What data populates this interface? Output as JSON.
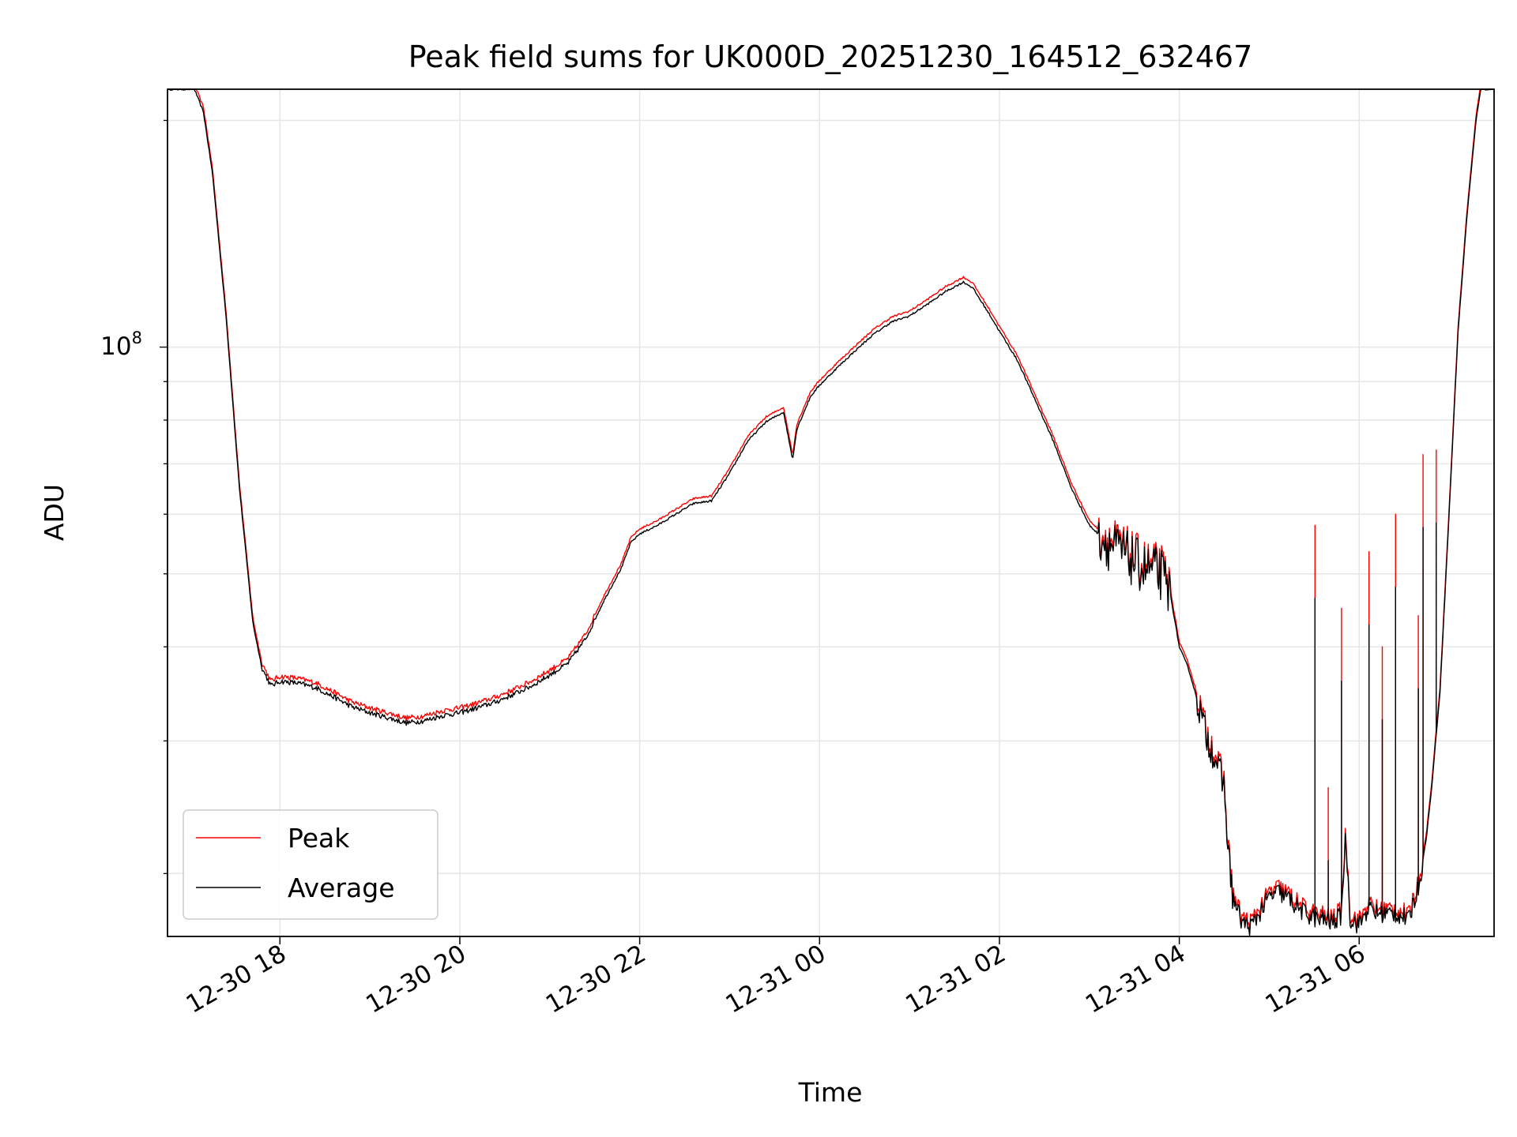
{
  "chart_data": {
    "type": "line",
    "title": "Peak field sums for UK000D_20251230_164512_632467",
    "xlabel": "Time",
    "ylabel": "ADU",
    "yscale": "log",
    "y_major_tick_label": {
      "base": "10",
      "exponent": "8",
      "value": 100000000
    },
    "y_minor_ticks": [
      20000000,
      30000000,
      40000000,
      50000000,
      60000000,
      70000000,
      80000000,
      90000000,
      200000000
    ],
    "xlim_hours": [
      16.75,
      31.5
    ],
    "ylim": [
      16500000,
      220000000
    ],
    "x_tick_labels": [
      "12-30 18",
      "12-30 20",
      "12-30 22",
      "12-31 00",
      "12-31 02",
      "12-31 04",
      "12-31 06"
    ],
    "x_tick_hours": [
      18,
      20,
      22,
      24,
      26,
      28,
      30
    ],
    "grid": true,
    "legend": {
      "position": "lower-left",
      "entries": [
        "Peak",
        "Average"
      ]
    },
    "series": [
      {
        "name": "Average",
        "color": "#000000",
        "points": [
          [
            16.75,
            220000000
          ],
          [
            17.05,
            220000000
          ],
          [
            17.15,
            205000000
          ],
          [
            17.25,
            170000000
          ],
          [
            17.4,
            110000000
          ],
          [
            17.55,
            65000000
          ],
          [
            17.7,
            43000000
          ],
          [
            17.8,
            37500000
          ],
          [
            17.9,
            35500000
          ],
          [
            18.0,
            36000000
          ],
          [
            18.2,
            35800000
          ],
          [
            18.4,
            35300000
          ],
          [
            18.6,
            34300000
          ],
          [
            18.8,
            33300000
          ],
          [
            19.0,
            32700000
          ],
          [
            19.2,
            32200000
          ],
          [
            19.4,
            31700000
          ],
          [
            19.6,
            31900000
          ],
          [
            19.8,
            32400000
          ],
          [
            20.0,
            32700000
          ],
          [
            20.2,
            33200000
          ],
          [
            20.4,
            33800000
          ],
          [
            20.6,
            34600000
          ],
          [
            20.8,
            35500000
          ],
          [
            21.0,
            36700000
          ],
          [
            21.2,
            38000000
          ],
          [
            21.4,
            41000000
          ],
          [
            21.6,
            46000000
          ],
          [
            21.8,
            51000000
          ],
          [
            21.9,
            55000000
          ],
          [
            22.0,
            56500000
          ],
          [
            22.2,
            58000000
          ],
          [
            22.4,
            60000000
          ],
          [
            22.6,
            62000000
          ],
          [
            22.8,
            62500000
          ],
          [
            23.0,
            68000000
          ],
          [
            23.2,
            75000000
          ],
          [
            23.4,
            79500000
          ],
          [
            23.6,
            82000000
          ],
          [
            23.7,
            71000000
          ],
          [
            23.75,
            78000000
          ],
          [
            23.9,
            86000000
          ],
          [
            24.0,
            89000000
          ],
          [
            24.2,
            94000000
          ],
          [
            24.4,
            99000000
          ],
          [
            24.6,
            104000000
          ],
          [
            24.8,
            108000000
          ],
          [
            25.0,
            110000000
          ],
          [
            25.2,
            114000000
          ],
          [
            25.4,
            118500000
          ],
          [
            25.6,
            122000000
          ],
          [
            25.7,
            120000000
          ],
          [
            25.9,
            110000000
          ],
          [
            26.0,
            105000000
          ],
          [
            26.2,
            96000000
          ],
          [
            26.4,
            85000000
          ],
          [
            26.6,
            75000000
          ],
          [
            26.8,
            65000000
          ],
          [
            27.0,
            58000000
          ],
          [
            27.2,
            55000000
          ],
          [
            27.4,
            53000000
          ],
          [
            27.6,
            51000000
          ],
          [
            27.8,
            50000000
          ],
          [
            27.9,
            47000000
          ],
          [
            28.0,
            40000000
          ],
          [
            28.1,
            37500000
          ],
          [
            28.2,
            34000000
          ],
          [
            28.3,
            30500000
          ],
          [
            28.4,
            28500000
          ],
          [
            28.5,
            26000000
          ],
          [
            28.55,
            21000000
          ],
          [
            28.6,
            18500000
          ],
          [
            28.7,
            17200000
          ],
          [
            28.8,
            17000000
          ],
          [
            28.9,
            17800000
          ],
          [
            29.0,
            18600000
          ],
          [
            29.1,
            18900000
          ],
          [
            29.2,
            18600000
          ],
          [
            29.3,
            18100000
          ],
          [
            29.4,
            17700000
          ],
          [
            29.5,
            17500000
          ],
          [
            29.55,
            17300000
          ],
          [
            29.6,
            17400000
          ],
          [
            29.7,
            17200000
          ],
          [
            29.8,
            17600000
          ],
          [
            29.85,
            22500000
          ],
          [
            29.9,
            17400000
          ],
          [
            30.0,
            17100000
          ],
          [
            30.1,
            18000000
          ],
          [
            30.2,
            17700000
          ],
          [
            30.3,
            17700000
          ],
          [
            30.4,
            17700000
          ],
          [
            30.5,
            17500000
          ],
          [
            30.55,
            17300000
          ],
          [
            30.6,
            18300000
          ],
          [
            30.65,
            19000000
          ],
          [
            30.7,
            20500000
          ],
          [
            30.75,
            22500000
          ],
          [
            30.8,
            25500000
          ],
          [
            30.9,
            35000000
          ],
          [
            31.0,
            60000000
          ],
          [
            31.1,
            105000000
          ],
          [
            31.2,
            150000000
          ],
          [
            31.3,
            200000000
          ],
          [
            31.35,
            220000000
          ],
          [
            31.5,
            220000000
          ]
        ]
      },
      {
        "name": "Peak",
        "color": "#ff0000",
        "offset_factor": 1.015,
        "spikes": [
          [
            29.5,
            58000000
          ],
          [
            29.65,
            26000000
          ],
          [
            29.8,
            45000000
          ],
          [
            30.1,
            53500000
          ],
          [
            30.25,
            40000000
          ],
          [
            30.4,
            60000000
          ],
          [
            30.65,
            44000000
          ],
          [
            30.7,
            72000000
          ],
          [
            30.85,
            73000000
          ]
        ]
      }
    ]
  }
}
